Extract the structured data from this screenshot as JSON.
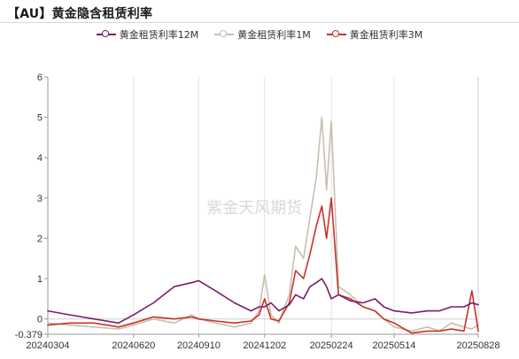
{
  "header": {
    "title": "【AU】黄金隐含租赁利率"
  },
  "watermark": "紫金天风期货",
  "legend": [
    {
      "label": "黄金租赁利率12M",
      "color": "#7b1c6b"
    },
    {
      "label": "黄金租赁利率1M",
      "color": "#c9bfae"
    },
    {
      "label": "黄金租赁利率3M",
      "color": "#c8322a"
    }
  ],
  "chart_data": {
    "type": "line",
    "title": "【AU】黄金隐含租赁利率",
    "xlabel": "",
    "ylabel": "",
    "ylim": [
      -0.379,
      6
    ],
    "yticks": [
      "6",
      "5",
      "4",
      "3",
      "2",
      "1",
      "0",
      "-0.379"
    ],
    "ytick_values": [
      6,
      5,
      4,
      3,
      2,
      1,
      0,
      -0.379
    ],
    "xtick_labels": [
      "20240304",
      "20240620",
      "20240910",
      "20241202",
      "20250224",
      "20250514",
      "20250828"
    ],
    "grid": "vertical",
    "legend_position": "top-center",
    "x": [
      "2024-03-04",
      "2024-04-01",
      "2024-05-01",
      "2024-06-01",
      "2024-06-20",
      "2024-07-15",
      "2024-08-10",
      "2024-09-01",
      "2024-09-10",
      "2024-10-01",
      "2024-10-25",
      "2024-11-15",
      "2024-11-25",
      "2024-12-02",
      "2024-12-10",
      "2024-12-20",
      "2025-01-02",
      "2025-01-10",
      "2025-01-20",
      "2025-01-28",
      "2025-02-05",
      "2025-02-12",
      "2025-02-18",
      "2025-02-24",
      "2025-03-05",
      "2025-03-20",
      "2025-04-05",
      "2025-04-20",
      "2025-05-01",
      "2025-05-14",
      "2025-06-05",
      "2025-06-25",
      "2025-07-10",
      "2025-07-25",
      "2025-08-10",
      "2025-08-20",
      "2025-08-28"
    ],
    "series": [
      {
        "name": "黄金租赁利率12M",
        "color": "#7b1c6b",
        "values": [
          0.2,
          0.1,
          0.0,
          -0.1,
          0.1,
          0.4,
          0.8,
          0.9,
          0.95,
          0.7,
          0.4,
          0.2,
          0.3,
          0.3,
          0.4,
          0.2,
          0.35,
          0.6,
          0.5,
          0.8,
          0.9,
          1.0,
          0.8,
          0.5,
          0.6,
          0.45,
          0.4,
          0.5,
          0.3,
          0.2,
          0.15,
          0.2,
          0.2,
          0.3,
          0.3,
          0.4,
          0.35
        ]
      },
      {
        "name": "黄金租赁利率1M",
        "color": "#c9bfae",
        "values": [
          -0.1,
          -0.15,
          -0.2,
          -0.25,
          -0.15,
          0.0,
          -0.1,
          0.1,
          0.0,
          -0.1,
          -0.2,
          -0.1,
          0.2,
          1.1,
          0.1,
          -0.1,
          0.6,
          1.8,
          1.5,
          2.5,
          3.5,
          5.0,
          3.2,
          4.9,
          0.8,
          0.6,
          0.3,
          0.2,
          0.0,
          -0.2,
          -0.3,
          -0.2,
          -0.3,
          -0.1,
          -0.2,
          -0.25,
          -0.15
        ]
      },
      {
        "name": "黄金租赁利率3M",
        "color": "#c8322a",
        "values": [
          -0.15,
          -0.1,
          -0.1,
          -0.2,
          -0.1,
          0.05,
          0.0,
          0.05,
          0.0,
          -0.05,
          -0.1,
          -0.05,
          0.1,
          0.5,
          0.0,
          -0.05,
          0.4,
          1.2,
          1.0,
          1.6,
          2.3,
          2.8,
          2.0,
          3.0,
          0.6,
          0.5,
          0.3,
          0.2,
          0.0,
          -0.1,
          -0.35,
          -0.3,
          -0.3,
          -0.25,
          -0.3,
          0.7,
          -0.3
        ]
      }
    ]
  }
}
